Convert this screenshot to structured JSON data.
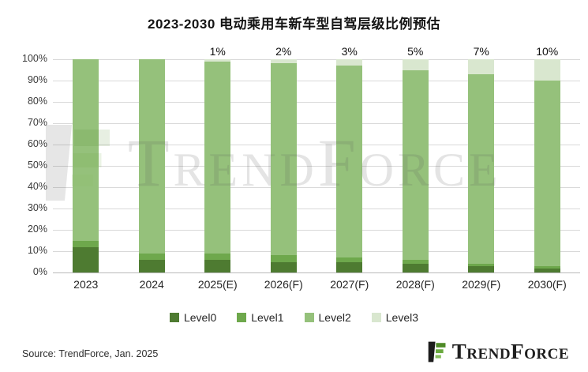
{
  "title": "2023-2030 电动乘用车新车型自驾层级比例预估",
  "chart_data": {
    "type": "bar",
    "stacked": true,
    "title": "2023-2030 电动乘用车新车型自驾层级比例预估",
    "categories": [
      "2023",
      "2024",
      "2025(E)",
      "2026(F)",
      "2027(F)",
      "2028(F)",
      "2029(F)",
      "2030(F)"
    ],
    "series": [
      {
        "name": "Level0",
        "color": "#4e7b31",
        "values": [
          12,
          6,
          6,
          5,
          5,
          4,
          3,
          2
        ]
      },
      {
        "name": "Level1",
        "color": "#6ea84c",
        "values": [
          3,
          3,
          3,
          3,
          2,
          2,
          1,
          1
        ]
      },
      {
        "name": "Level2",
        "color": "#95c17b",
        "values": [
          85,
          91,
          90,
          90,
          90,
          89,
          89,
          87
        ]
      },
      {
        "name": "Level3",
        "color": "#d9e7cf",
        "values": [
          0,
          0,
          1,
          2,
          3,
          5,
          7,
          10
        ]
      }
    ],
    "bar_top_labels": [
      "",
      "",
      "1%",
      "2%",
      "3%",
      "5%",
      "7%",
      "10%"
    ],
    "y_ticks": [
      "0%",
      "10%",
      "20%",
      "30%",
      "40%",
      "50%",
      "60%",
      "70%",
      "80%",
      "90%",
      "100%"
    ],
    "ylim": [
      0,
      100
    ],
    "grid": true,
    "legend_position": "bottom-center",
    "legend": [
      "Level0",
      "Level1",
      "Level2",
      "Level3"
    ]
  },
  "watermark": {
    "text": "TrendForce"
  },
  "footer": {
    "source": "Source: TrendForce, Jan. 2025",
    "brand": "TrendForce"
  },
  "colors": {
    "level0": "#4e7b31",
    "level1": "#6ea84c",
    "level2": "#95c17b",
    "level3": "#d9e7cf",
    "gridline": "#d9d9d9",
    "logo_black": "#1c1c1c",
    "logo_green": "#4e8a27"
  }
}
